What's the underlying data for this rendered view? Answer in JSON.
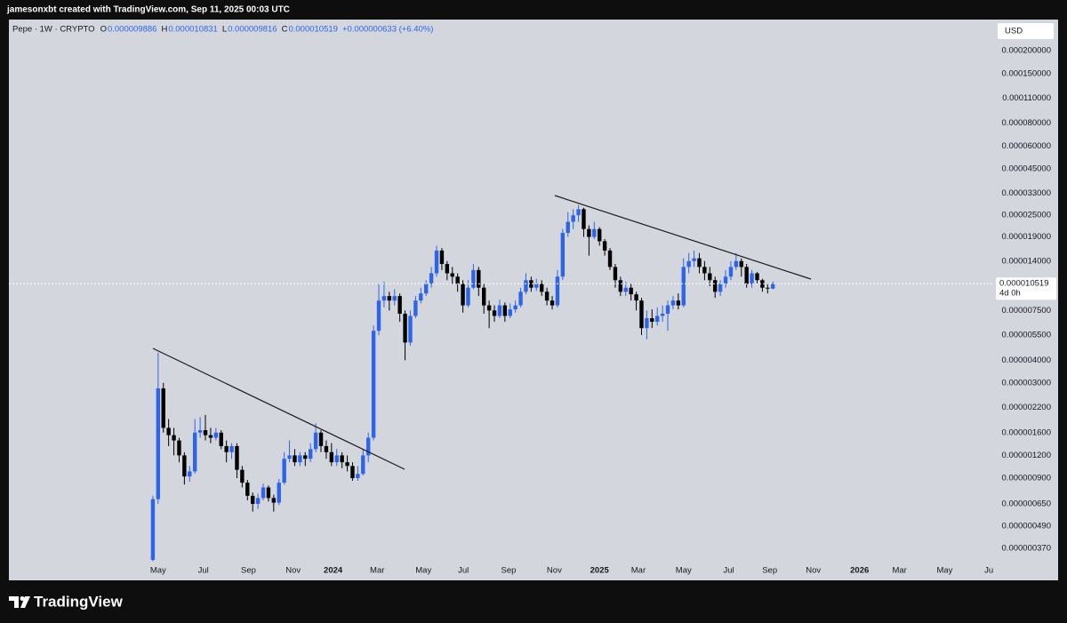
{
  "top_bar": "jamesonxbt created with TradingView.com, Sep 11, 2025 00:03 UTC",
  "brand": "TradingView",
  "chart_data": {
    "type": "candlestick",
    "title": "Pepe · 1W · CRYPTO",
    "legend_values": [
      {
        "key": "O",
        "text": "0.000009886"
      },
      {
        "key": "H",
        "text": "0.000010831"
      },
      {
        "key": "L",
        "text": "0.000009816"
      },
      {
        "key": "C",
        "text": "0.000010519"
      }
    ],
    "change": "+0.000000633 (+6.40%)",
    "currency": "USD",
    "up_color": "#2e64e8",
    "down_color": "#000000",
    "log_y": true,
    "grid": false,
    "open": [
      3.2e-07,
      6.9e-07,
      2.8e-06,
      1.7e-06,
      1.55e-06,
      1.45e-06,
      1.2e-06,
      9.2e-07,
      9.8e-07,
      1.6e-06,
      1.65e-06,
      1.55e-06,
      1.5e-06,
      1.6e-06,
      1.35e-06,
      1.25e-06,
      1.35e-06,
      1e-06,
      8.5e-07,
      7.2e-07,
      6.5e-07,
      7e-07,
      8e-07,
      7e-07,
      6.6e-07,
      8.5e-07,
      1.15e-06,
      1.2e-06,
      1.1e-06,
      1.2e-06,
      1.15e-06,
      1.3e-06,
      1.6e-06,
      1.35e-06,
      1.25e-06,
      1.1e-06,
      1.2e-06,
      1.1e-06,
      1.05e-06,
      9e-07,
      9.5e-07,
      1.2e-06,
      1.5e-06,
      5.8e-06,
      8.5e-06,
      9e-06,
      8.5e-06,
      9e-06,
      7.2e-06,
      5e-06,
      7e-06,
      8.5e-06,
      9.3e-06,
      1.05e-05,
      1.2e-05,
      1.6e-05,
      1.35e-05,
      1.2e-05,
      1.15e-05,
      1.05e-05,
      8e-06,
      1e-05,
      1.25e-05,
      1e-05,
      8e-06,
      7.5e-06,
      7e-06,
      8e-06,
      7e-06,
      7.6e-06,
      8e-06,
      9.5e-06,
      1.1e-05,
      1e-05,
      1.05e-05,
      9.5e-06,
      8.5e-06,
      8e-06,
      1.15e-05,
      2e-05,
      2.3e-05,
      2.5e-05,
      2.7e-05,
      2.1e-05,
      1.9e-05,
      2.1e-05,
      1.8e-05,
      1.6e-05,
      1.3e-05,
      1.1e-05,
      9.5e-06,
      1e-05,
      9.2e-06,
      8.5e-06,
      6e-06,
      6.8e-06,
      6.5e-06,
      7e-06,
      7.2e-06,
      8e-06,
      8.5e-06,
      8e-06,
      1.3e-05,
      1.4e-05,
      1.45e-05,
      1.3e-05,
      1.2e-05,
      1.1e-05,
      9.5e-06,
      1.05e-05,
      1.15e-05,
      1.3e-05,
      1.4e-05,
      1.3e-05,
      1.05e-05,
      1.2e-05,
      1.1e-05,
      1e-05,
      9.886e-06
    ],
    "high": [
      7.2e-07,
      4.4e-06,
      3e-06,
      1.9e-06,
      1.7e-06,
      1.5e-06,
      1.25e-06,
      1.05e-06,
      1.9e-06,
      1.95e-06,
      2e-06,
      1.7e-06,
      1.7e-06,
      1.65e-06,
      1.45e-06,
      1.4e-06,
      1.4e-06,
      1.05e-06,
      8.8e-07,
      7.5e-07,
      7.4e-07,
      8.4e-07,
      8.2e-07,
      7.3e-07,
      8.9e-07,
      1.25e-06,
      1.45e-06,
      1.3e-06,
      1.25e-06,
      1.25e-06,
      1.4e-06,
      1.8e-06,
      1.65e-06,
      1.45e-06,
      1.4e-06,
      1.3e-06,
      1.25e-06,
      1.2e-06,
      1.1e-06,
      1.05e-06,
      1.3e-06,
      1.6e-06,
      6.2e-06,
      1.05e-05,
      1.08e-05,
      9.5e-06,
      9.8e-06,
      9.3e-06,
      7.5e-06,
      7.5e-06,
      9e-06,
      1e-05,
      1.1e-05,
      1.3e-05,
      1.7e-05,
      1.65e-05,
      1.4e-05,
      1.3e-05,
      1.2e-05,
      1.1e-05,
      1.1e-05,
      1.35e-05,
      1.3e-05,
      1.05e-05,
      8.5e-06,
      8e-06,
      8.6e-06,
      8.3e-06,
      8.2e-06,
      8.5e-06,
      1e-05,
      1.2e-05,
      1.15e-05,
      1.12e-05,
      1.1e-05,
      1e-05,
      9e-06,
      1.25e-05,
      2.1e-05,
      2.6e-05,
      2.7e-05,
      2.85e-05,
      2.75e-05,
      2.2e-05,
      2.3e-05,
      2.15e-05,
      1.85e-05,
      1.65e-05,
      1.35e-05,
      1.15e-05,
      1.08e-05,
      1.05e-05,
      9.5e-06,
      8.8e-06,
      7.5e-06,
      7.6e-06,
      7.8e-06,
      8e-06,
      8.5e-06,
      9e-06,
      9.3e-06,
      1.45e-05,
      1.55e-05,
      1.6e-05,
      1.55e-05,
      1.4e-05,
      1.3e-05,
      1.15e-05,
      1.1e-05,
      1.25e-05,
      1.4e-05,
      1.55e-05,
      1.45e-05,
      1.35e-05,
      1.25e-05,
      1.22e-05,
      1.12e-05,
      1.06e-05,
      1.0831e-05
    ],
    "low": [
      3.15e-07,
      6.5e-07,
      1.6e-06,
      1.35e-06,
      1.2e-06,
      1.1e-06,
      8.3e-07,
      8.6e-07,
      9.5e-07,
      1.5e-06,
      1.45e-06,
      1.4e-06,
      1.45e-06,
      1.3e-06,
      1.1e-06,
      1.15e-06,
      9e-07,
      8e-07,
      6.8e-07,
      5.9e-07,
      6.1e-07,
      6.8e-07,
      6.7e-07,
      5.9e-07,
      6.4e-07,
      8.3e-07,
      1.1e-06,
      1.05e-06,
      1.05e-06,
      1.05e-06,
      1.1e-06,
      1.25e-06,
      1.25e-06,
      1.15e-06,
      1.05e-06,
      1.05e-06,
      1.02e-06,
      9.8e-07,
      8.7e-07,
      8.7e-07,
      9.3e-07,
      1.1e-06,
      1.45e-06,
      5.5e-06,
      7.8e-06,
      7.5e-06,
      8e-06,
      6.5e-06,
      4e-06,
      4.8e-06,
      6.8e-06,
      8.2e-06,
      9e-06,
      1e-05,
      1.15e-05,
      1.25e-05,
      1.1e-05,
      1.05e-05,
      9.5e-06,
      7.3e-06,
      7.8e-06,
      9.8e-06,
      9e-06,
      7.2e-06,
      6e-06,
      6.5e-06,
      6.8e-06,
      6.5e-06,
      6.8e-06,
      7.3e-06,
      7.8e-06,
      9.2e-06,
      9.5e-06,
      9.6e-06,
      9e-06,
      8e-06,
      7.6e-06,
      7.8e-06,
      1.1e-05,
      1.9e-05,
      2.1e-05,
      2.3e-05,
      1.9e-05,
      1.5e-05,
      1.85e-05,
      1.7e-05,
      1.5e-05,
      1.25e-05,
      1e-05,
      9e-06,
      9e-06,
      8.5e-06,
      7.5e-06,
      5.5e-06,
      5.2e-06,
      6e-06,
      6.2e-06,
      6.5e-06,
      5.8e-06,
      7.6e-06,
      7.6e-06,
      7.8e-06,
      1.2e-05,
      1.3e-05,
      1.2e-05,
      1.1e-05,
      1.02e-05,
      8.8e-06,
      9e-06,
      1e-05,
      1.1e-05,
      1.25e-05,
      1.15e-05,
      1e-05,
      1e-05,
      1.05e-05,
      9.5e-06,
      9.3e-06,
      9.816e-06
    ],
    "close": [
      6.9e-07,
      2.8e-06,
      1.7e-06,
      1.55e-06,
      1.45e-06,
      1.2e-06,
      9.2e-07,
      9.8e-07,
      1.6e-06,
      1.65e-06,
      1.55e-06,
      1.5e-06,
      1.6e-06,
      1.35e-06,
      1.25e-06,
      1.35e-06,
      1e-06,
      8.5e-07,
      7.2e-07,
      6.5e-07,
      7e-07,
      8e-07,
      7e-07,
      6.6e-07,
      8.5e-07,
      1.15e-06,
      1.2e-06,
      1.1e-06,
      1.2e-06,
      1.15e-06,
      1.3e-06,
      1.6e-06,
      1.35e-06,
      1.25e-06,
      1.1e-06,
      1.2e-06,
      1.1e-06,
      1.05e-06,
      9e-07,
      9.5e-07,
      1.2e-06,
      1.5e-06,
      5.8e-06,
      8.5e-06,
      9e-06,
      8.5e-06,
      9e-06,
      7.2e-06,
      5e-06,
      7e-06,
      8.5e-06,
      9.3e-06,
      1.05e-05,
      1.2e-05,
      1.6e-05,
      1.35e-05,
      1.2e-05,
      1.15e-05,
      1.05e-05,
      8e-06,
      1e-05,
      1.25e-05,
      1e-05,
      8e-06,
      7.5e-06,
      7e-06,
      8e-06,
      7e-06,
      7.6e-06,
      8e-06,
      9.5e-06,
      1.1e-05,
      1e-05,
      1.05e-05,
      9.5e-06,
      8.5e-06,
      8e-06,
      1.15e-05,
      2e-05,
      2.3e-05,
      2.5e-05,
      2.7e-05,
      2.1e-05,
      1.9e-05,
      2.1e-05,
      1.8e-05,
      1.6e-05,
      1.3e-05,
      1.1e-05,
      9.5e-06,
      1e-05,
      9.2e-06,
      8.5e-06,
      6e-06,
      6.8e-06,
      6.5e-06,
      7e-06,
      7.2e-06,
      8e-06,
      8.5e-06,
      8e-06,
      1.3e-05,
      1.4e-05,
      1.45e-05,
      1.3e-05,
      1.2e-05,
      1.1e-05,
      9.5e-06,
      1.05e-05,
      1.15e-05,
      1.3e-05,
      1.4e-05,
      1.3e-05,
      1.05e-05,
      1.2e-05,
      1.1e-05,
      1e-05,
      9.886e-06,
      1.0519e-05
    ],
    "last_label": "0.000010519",
    "countdown": "4d 0h",
    "ylim": [
      3.13e-07,
      0.000287
    ],
    "yticks": [
      {
        "value": 0.0002,
        "label": "0.000200000"
      },
      {
        "value": 0.00015,
        "label": "0.000150000"
      },
      {
        "value": 0.00011,
        "label": "0.000110000"
      },
      {
        "value": 8e-05,
        "label": "0.000080000"
      },
      {
        "value": 6e-05,
        "label": "0.000060000"
      },
      {
        "value": 4.5e-05,
        "label": "0.000045000"
      },
      {
        "value": 3.3e-05,
        "label": "0.000033000"
      },
      {
        "value": 2.5e-05,
        "label": "0.000025000"
      },
      {
        "value": 1.9e-05,
        "label": "0.000019000"
      },
      {
        "value": 1.4e-05,
        "label": "0.000014000"
      },
      {
        "value": 7.5e-06,
        "label": "0.000007500"
      },
      {
        "value": 5.5e-06,
        "label": "0.000005500"
      },
      {
        "value": 4e-06,
        "label": "0.000004000"
      },
      {
        "value": 3e-06,
        "label": "0.000003000"
      },
      {
        "value": 2.2e-06,
        "label": "0.000002200"
      },
      {
        "value": 1.6e-06,
        "label": "0.000001600"
      },
      {
        "value": 1.2e-06,
        "label": "0.000001200"
      },
      {
        "value": 9e-07,
        "label": "0.000000900"
      },
      {
        "value": 6.5e-07,
        "label": "0.000000650"
      },
      {
        "value": 4.9e-07,
        "label": "0.000000490"
      },
      {
        "value": 3.7e-07,
        "label": "0.000000370"
      }
    ],
    "xlim": [
      -27.4,
      160.1
    ],
    "xticks": [
      {
        "value": 1.0,
        "label": "May"
      },
      {
        "value": 9.6,
        "label": "Jul"
      },
      {
        "value": 18.2,
        "label": "Sep"
      },
      {
        "value": 26.7,
        "label": "Nov"
      },
      {
        "value": 34.3,
        "label": "2024"
      },
      {
        "value": 42.7,
        "label": "Mar"
      },
      {
        "value": 51.5,
        "label": "May"
      },
      {
        "value": 59.1,
        "label": "Jul"
      },
      {
        "value": 67.7,
        "label": "Sep"
      },
      {
        "value": 76.4,
        "label": "Nov"
      },
      {
        "value": 85.0,
        "label": "2025"
      },
      {
        "value": 92.4,
        "label": "Mar"
      },
      {
        "value": 101.0,
        "label": "May"
      },
      {
        "value": 109.6,
        "label": "Jul"
      },
      {
        "value": 117.4,
        "label": "Sep"
      },
      {
        "value": 125.7,
        "label": "Nov"
      },
      {
        "value": 134.5,
        "label": "2026"
      },
      {
        "value": 142.1,
        "label": "Mar"
      },
      {
        "value": 150.7,
        "label": "May"
      },
      {
        "value": 159.1,
        "label": "Ju"
      }
    ]
  }
}
